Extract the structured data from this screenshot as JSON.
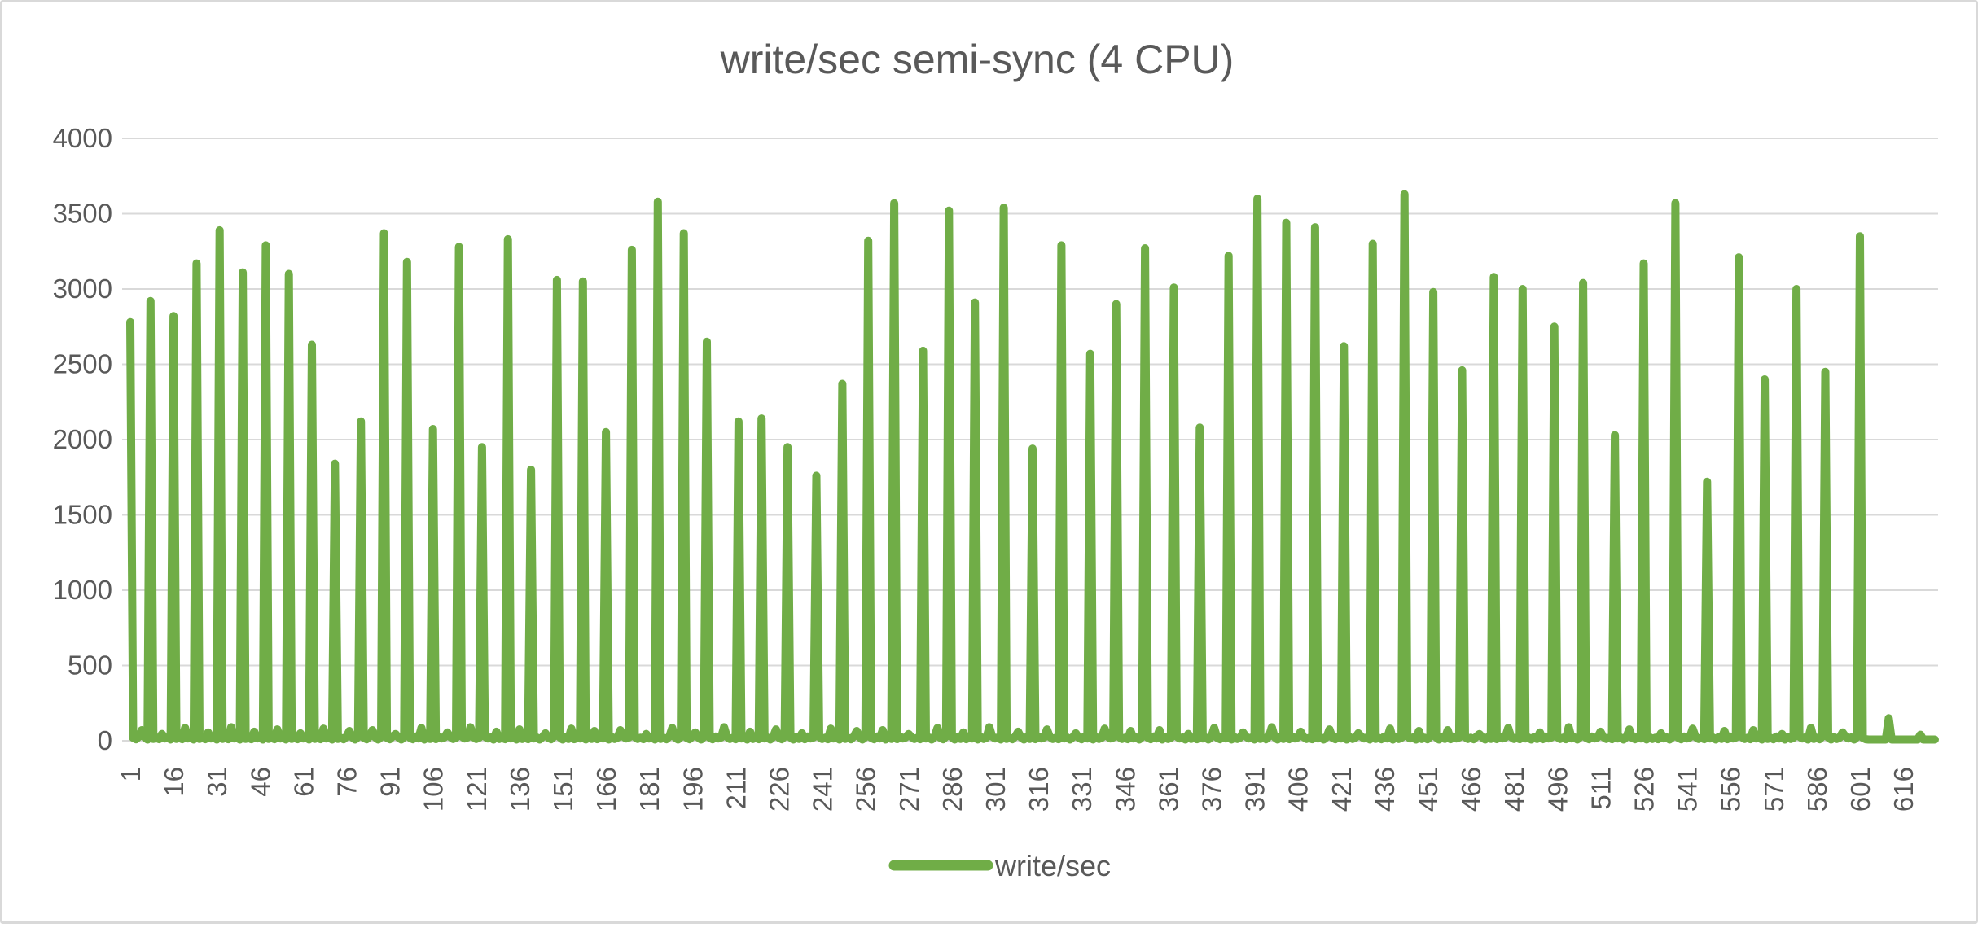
{
  "colors": {
    "series_green": "#70AD47",
    "grid_gray": "#D9D9D9",
    "text_gray": "#595959",
    "border_gray": "#D9D9D9",
    "background": "#FFFFFF"
  },
  "chart_data": {
    "type": "line",
    "title": "write/sec semi-sync (4 CPU)",
    "legend": {
      "label": "write/sec",
      "position": "bottom"
    },
    "xlabel": "",
    "ylabel": "",
    "ylim": [
      0,
      4000
    ],
    "grid": true,
    "y_ticks": [
      0,
      500,
      1000,
      1500,
      2000,
      2500,
      3000,
      3500,
      4000
    ],
    "x_ticks": [
      1,
      16,
      31,
      46,
      61,
      76,
      91,
      106,
      121,
      136,
      151,
      166,
      181,
      196,
      211,
      226,
      241,
      256,
      271,
      286,
      301,
      316,
      331,
      346,
      361,
      376,
      391,
      406,
      421,
      436,
      451,
      466,
      481,
      496,
      511,
      526,
      541,
      556,
      571,
      586,
      601,
      616
    ],
    "n_points": 627,
    "series_name": "write/sec",
    "spikes": [
      [
        1,
        2780
      ],
      [
        8,
        2920
      ],
      [
        16,
        2820
      ],
      [
        24,
        3170
      ],
      [
        32,
        3390
      ],
      [
        40,
        3110
      ],
      [
        48,
        3290
      ],
      [
        56,
        3100
      ],
      [
        64,
        2630
      ],
      [
        72,
        1840
      ],
      [
        81,
        2120
      ],
      [
        89,
        3370
      ],
      [
        97,
        3180
      ],
      [
        106,
        2070
      ],
      [
        115,
        3280
      ],
      [
        123,
        1950
      ],
      [
        132,
        3330
      ],
      [
        140,
        1800
      ],
      [
        149,
        3060
      ],
      [
        158,
        3050
      ],
      [
        166,
        2050
      ],
      [
        175,
        3260
      ],
      [
        184,
        3580
      ],
      [
        193,
        3370
      ],
      [
        201,
        2650
      ],
      [
        212,
        2120
      ],
      [
        220,
        2140
      ],
      [
        229,
        1950
      ],
      [
        239,
        1760
      ],
      [
        248,
        2370
      ],
      [
        257,
        3320
      ],
      [
        266,
        3570
      ],
      [
        276,
        2590
      ],
      [
        285,
        3520
      ],
      [
        294,
        2910
      ],
      [
        304,
        3540
      ],
      [
        314,
        1940
      ],
      [
        324,
        3290
      ],
      [
        334,
        2570
      ],
      [
        343,
        2900
      ],
      [
        353,
        3270
      ],
      [
        363,
        3010
      ],
      [
        372,
        2080
      ],
      [
        382,
        3220
      ],
      [
        392,
        3600
      ],
      [
        402,
        3440
      ],
      [
        412,
        3410
      ],
      [
        422,
        2620
      ],
      [
        432,
        3300
      ],
      [
        443,
        3630
      ],
      [
        453,
        2980
      ],
      [
        463,
        2460
      ],
      [
        474,
        3080
      ],
      [
        484,
        3000
      ],
      [
        495,
        2750
      ],
      [
        505,
        3040
      ],
      [
        516,
        2030
      ],
      [
        526,
        3170
      ],
      [
        537,
        3570
      ],
      [
        548,
        1720
      ],
      [
        559,
        3210
      ],
      [
        568,
        2400
      ],
      [
        579,
        3000
      ],
      [
        589,
        2450
      ],
      [
        601,
        3350
      ],
      [
        611,
        150
      ],
      [
        622,
        40
      ]
    ],
    "baseline": {
      "troughs": [
        25,
        12,
        20,
        10,
        28,
        15,
        22,
        8
      ],
      "humps": [
        70,
        45,
        85,
        55,
        90,
        60,
        75,
        50,
        80,
        65
      ],
      "hump_threshold": 300
    },
    "tail": {
      "from": 604,
      "value": 8
    }
  }
}
